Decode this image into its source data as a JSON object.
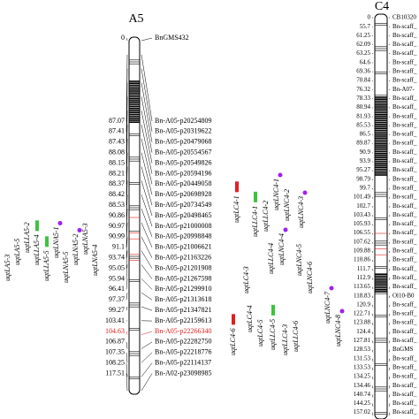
{
  "chromosomes": [
    {
      "name": "A5",
      "markers": [
        {
          "position": 0,
          "label": "BnGMS432"
        },
        {
          "position": 87.07,
          "label": "Bn-A05-p20254809"
        },
        {
          "position": 87.41,
          "label": "Bn-A05-p20319622"
        },
        {
          "position": 87.43,
          "label": "Bn-A05-p20479068"
        },
        {
          "position": 88.08,
          "label": "Bn-A05-p20554567"
        },
        {
          "position": 88.15,
          "label": "Bn-A05-p20549826"
        },
        {
          "position": 88.21,
          "label": "Bn-A05-p20594196"
        },
        {
          "position": 88.37,
          "label": "Bn-A05-p20449058"
        },
        {
          "position": 88.42,
          "label": "Bn-A05-p20698928"
        },
        {
          "position": 88.53,
          "label": "Bn-A05-p20734549"
        },
        {
          "position": 90.86,
          "label": "Bn-A05-p20498465"
        },
        {
          "position": 90.97,
          "label": "Bn-A05-p21000008"
        },
        {
          "position": 90.99,
          "label": "Bn-A05-p20998848"
        },
        {
          "position": 91.1,
          "label": "Bn-A05-p21006621"
        },
        {
          "position": 93.74,
          "label": "Bn-A05-p21163226"
        },
        {
          "position": 95.05,
          "label": "Bn-A05-p21201908"
        },
        {
          "position": 95.94,
          "label": "Bn-A05-p21267598"
        },
        {
          "position": 96.41,
          "label": "Bn-A05-p21299910"
        },
        {
          "position": 97.37,
          "label": "Bn-A05-p21313618"
        },
        {
          "position": 99.27,
          "label": "Bn-A05-p21347821"
        },
        {
          "position": 103.41,
          "label": "Bn-A05-p22159613"
        },
        {
          "position": 104.63,
          "label": "Bn-A05-p22266340",
          "color": "#e02020"
        },
        {
          "position": 106.87,
          "label": "Bn-A05-p22282750"
        },
        {
          "position": 107.35,
          "label": "Bn-A05-p22218776"
        },
        {
          "position": 108.25,
          "label": "Bn-A05-p22114137"
        },
        {
          "position": 117.51,
          "label": "Bn-A02-p23098985"
        }
      ]
    },
    {
      "name": "C4",
      "markers": [
        {
          "position": 0,
          "label": "CB10320"
        },
        {
          "position": 55.7,
          "label": "Bn-scaff_"
        },
        {
          "position": 61.25,
          "label": "Bn-scaff_"
        },
        {
          "position": 62.09,
          "label": "Bn-scaff_"
        },
        {
          "position": 63.25,
          "label": "Bn-scaff_"
        },
        {
          "position": 64.6,
          "label": "Bn-scaff_"
        },
        {
          "position": 69.36,
          "label": "Bn-scaff_"
        },
        {
          "position": 70.84,
          "label": "Bn-scaff_"
        },
        {
          "position": 76.32,
          "label": "Bn-A07-"
        },
        {
          "position": 78.33,
          "label": "Bn-scaff_"
        },
        {
          "position": 80.94,
          "label": "Bn-scaff_"
        },
        {
          "position": 81.93,
          "label": "Bn-scaff_"
        },
        {
          "position": 85.53,
          "label": "Bn-scaff_"
        },
        {
          "position": 86.5,
          "label": "Bn-scaff_"
        },
        {
          "position": 89.87,
          "label": "Bn-scaff_"
        },
        {
          "position": 90.9,
          "label": "Bn-scaff_"
        },
        {
          "position": 93.9,
          "label": "Bn-scaff_"
        },
        {
          "position": 95.27,
          "label": "Bn-scaff_"
        },
        {
          "position": 98.79,
          "label": "Bn-scaff_"
        },
        {
          "position": 99.7,
          "label": "Bn-scaff_"
        },
        {
          "position": 101.49,
          "label": "Bn-scaff_"
        },
        {
          "position": 102.7,
          "label": "Bn-scaff_"
        },
        {
          "position": 103.43,
          "label": "Bn-scaff_"
        },
        {
          "position": 105.93,
          "label": "Bn-scaff_"
        },
        {
          "position": 106.55,
          "label": "Bn-scaff_"
        },
        {
          "position": 107.62,
          "label": "Bn-scaff_"
        },
        {
          "position": 109.88,
          "label": "Bn-scaff_"
        },
        {
          "position": 110.86,
          "label": "Bn-scaff_"
        },
        {
          "position": 111.7,
          "label": "Bn-scaff_"
        },
        {
          "position": 112.9,
          "label": "Bn-scaff_"
        },
        {
          "position": 113.65,
          "label": "Bn-scaff_"
        },
        {
          "position": 118.83,
          "label": "Ol10-B0"
        },
        {
          "position": 120.9,
          "label": "Bn-scaff_"
        },
        {
          "position": 122.71,
          "label": "Bn-scaff_"
        },
        {
          "position": 123.88,
          "label": "Bn-scaff_"
        },
        {
          "position": 124.4,
          "label": "Bn-scaff_"
        },
        {
          "position": 127.81,
          "label": "Bn-scaff_"
        },
        {
          "position": 128.53,
          "label": "BnGMS"
        },
        {
          "position": 131.53,
          "label": "Bn-scaff_"
        },
        {
          "position": 133.53,
          "label": "Bn-scaff_"
        },
        {
          "position": 134.25,
          "label": "Bn-scaff_"
        },
        {
          "position": 134.46,
          "label": "Bn-scaff_"
        },
        {
          "position": 140.74,
          "label": "Bn-scaff_"
        },
        {
          "position": 144.25,
          "label": "Bn-scaff_"
        },
        {
          "position": 157.02,
          "label": "Bn-scaff_"
        }
      ]
    }
  ],
  "qtls": [
    [
      {
        "label": "uqtLA5-3"
      },
      {
        "label": "uqtLA5-5"
      },
      {
        "label": "uqtLLA5-2"
      },
      {
        "label": "uqtLLA5-4",
        "color": "#3cc43c"
      },
      {
        "label": "uqtLLA5-5",
        "color": "#3cc43c"
      },
      {
        "label": "uqtLNA5-1",
        "color": "#a020f0"
      },
      {
        "label": "uqtLNA5-5"
      },
      {
        "label": "uqtLNA5-2",
        "color": "#a020f0"
      },
      {
        "label": "uqtLNA5-3"
      },
      {
        "label": "uqtLNA5-4"
      }
    ],
    [
      {
        "label": "uqtLC4-1",
        "color": "#e02020"
      },
      {
        "label": "uqtLLC4-1",
        "color": "#3cc43c"
      },
      {
        "label": "uqtLLC4-2"
      },
      {
        "label": "uqtLNC4-1",
        "color": "#a020f0"
      },
      {
        "label": "uqtLNC4-2"
      },
      {
        "label": "uqtLNC4-3",
        "color": "#a020f0"
      },
      {
        "label": "uqtLLC4-4"
      },
      {
        "label": "uqtLC4-3"
      },
      {
        "label": "uqtLNC4-4",
        "color": "#a020f0"
      },
      {
        "label": "uqtLNC4-5"
      },
      {
        "label": "uqtLC4-6",
        "color": "#e02020"
      },
      {
        "label": "uqtLC4-4"
      },
      {
        "label": "uqtLC4-5"
      },
      {
        "label": "uqtLLC4-5",
        "color": "#3cc43c"
      },
      {
        "label": "uqtLLC4-3"
      },
      {
        "label": "uqtLLC4-6"
      },
      {
        "label": "uqtLNC4-6"
      },
      {
        "label": "uqtLNC4-7",
        "color": "#a020f0"
      },
      {
        "label": "uqtLNC4-8",
        "color": "#a020f0"
      }
    ]
  ]
}
